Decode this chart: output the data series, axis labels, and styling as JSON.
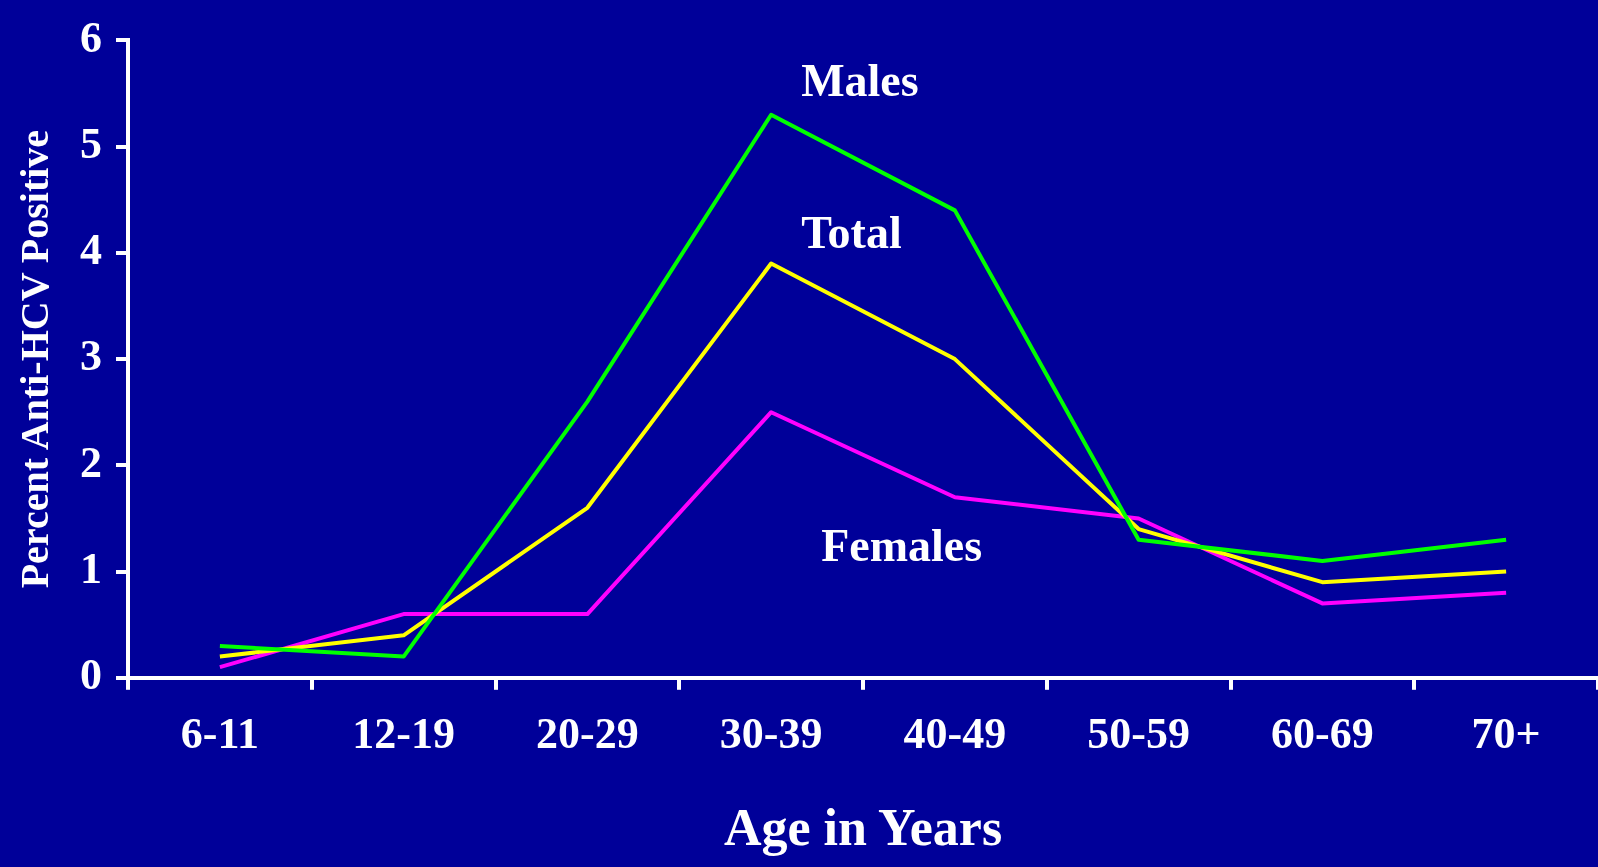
{
  "chart_data": {
    "type": "line",
    "xlabel": "Age in Years",
    "ylabel": "Percent Anti-HCV Positive",
    "categories": [
      "6-11",
      "12-19",
      "20-29",
      "30-39",
      "40-49",
      "50-59",
      "60-69",
      "70+"
    ],
    "series": [
      {
        "name": "Males",
        "color": "#00ff00",
        "values": [
          0.3,
          0.2,
          2.6,
          5.3,
          4.4,
          1.3,
          1.1,
          1.3
        ]
      },
      {
        "name": "Total",
        "color": "#ffff00",
        "values": [
          0.2,
          0.4,
          1.6,
          3.9,
          3.0,
          1.4,
          0.9,
          1.0
        ]
      },
      {
        "name": "Females",
        "color": "#ff00ff",
        "values": [
          0.1,
          0.6,
          0.6,
          2.5,
          1.7,
          1.5,
          0.7,
          0.8
        ]
      }
    ],
    "ylim": [
      0,
      6
    ],
    "yticks": [
      0,
      1,
      2,
      3,
      4,
      5,
      6
    ],
    "grid": false,
    "legend": false,
    "marker": "none",
    "line_style": "solid"
  }
}
